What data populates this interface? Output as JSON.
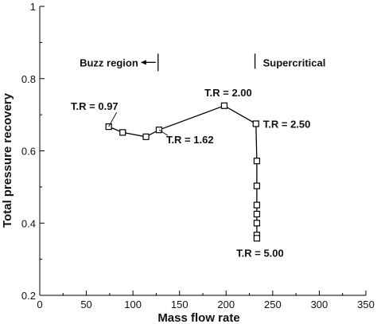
{
  "chart_data": {
    "type": "line",
    "xlabel": "Mass flow rate",
    "ylabel": "Total pressure recovery",
    "xlim": [
      0,
      350
    ],
    "ylim": [
      0.2,
      1.0
    ],
    "xticks": [
      "0",
      "50",
      "100",
      "150",
      "200",
      "250",
      "300",
      "350"
    ],
    "yticks": [
      "0.2",
      "0.4",
      "0.6",
      "0.8",
      "1"
    ],
    "series": [
      {
        "marker": "square",
        "color": "#000000",
        "x": [
          74,
          89,
          114,
          128,
          198,
          232,
          233,
          233,
          233,
          233,
          233,
          233,
          233
        ],
        "y": [
          0.667,
          0.651,
          0.639,
          0.658,
          0.725,
          0.675,
          0.572,
          0.503,
          0.45,
          0.425,
          0.4,
          0.367,
          0.358
        ]
      }
    ],
    "annotations": [
      {
        "text": "T.R = 0.97",
        "x": 74,
        "y": 0.667
      },
      {
        "text": "T.R = 1.62",
        "x": 128,
        "y": 0.658
      },
      {
        "text": "T.R = 2.00",
        "x": 198,
        "y": 0.725
      },
      {
        "text": "T.R = 2.50",
        "x": 232,
        "y": 0.675
      },
      {
        "text": "T.R = 5.00",
        "x": 233,
        "y": 0.358
      }
    ],
    "regions": {
      "buzz_label": "Buzz region",
      "buzz_boundary_x": 127,
      "supercritical_label": "Supercritical",
      "supercritical_boundary_x": 231
    },
    "grid": false
  }
}
